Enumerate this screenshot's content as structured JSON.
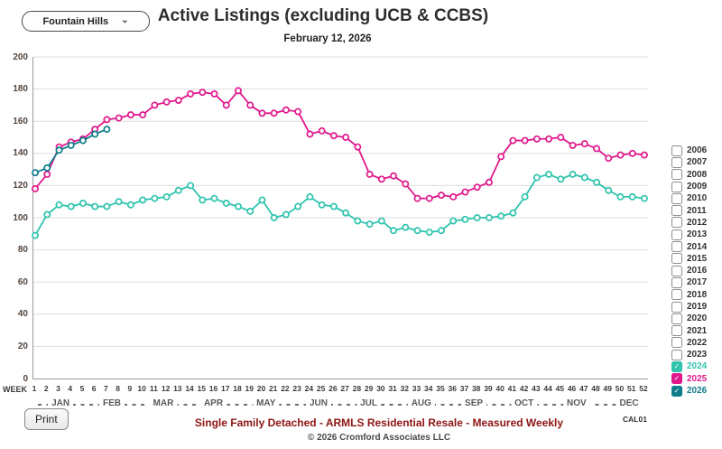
{
  "controls": {
    "area_selector": "Fountain Hills",
    "print_label": "Print",
    "code": "CAL01"
  },
  "header": {
    "title": "Active Listings (excluding UCB & CCBS)",
    "subtitle": "February 12, 2026"
  },
  "footer": {
    "line1": "Single Family Detached - ARMLS Residential Resale - Measured Weekly",
    "line2": "© 2026 Cromford Associates LLC"
  },
  "axis": {
    "week_label": "WEEK",
    "y_ticks": [
      200,
      180,
      160,
      140,
      120,
      100,
      80,
      60,
      40,
      20,
      0
    ],
    "weeks": [
      1,
      2,
      3,
      4,
      5,
      6,
      7,
      8,
      9,
      10,
      11,
      12,
      13,
      14,
      15,
      16,
      17,
      18,
      19,
      20,
      21,
      22,
      23,
      24,
      25,
      26,
      27,
      28,
      29,
      30,
      31,
      32,
      33,
      34,
      35,
      36,
      37,
      38,
      39,
      40,
      41,
      42,
      43,
      44,
      45,
      46,
      47,
      48,
      49,
      50,
      51,
      52
    ],
    "months": [
      {
        "label": "JAN",
        "center_week": 3.2
      },
      {
        "label": "FEB",
        "center_week": 7.5
      },
      {
        "label": "MAR",
        "center_week": 11.8
      },
      {
        "label": "APR",
        "center_week": 16.0
      },
      {
        "label": "MAY",
        "center_week": 20.4
      },
      {
        "label": "JUN",
        "center_week": 24.8
      },
      {
        "label": "JUL",
        "center_week": 29.0
      },
      {
        "label": "AUG",
        "center_week": 33.4
      },
      {
        "label": "SEP",
        "center_week": 37.8
      },
      {
        "label": "OCT",
        "center_week": 42.0
      },
      {
        "label": "NOV",
        "center_week": 46.4
      },
      {
        "label": "DEC",
        "center_week": 50.8
      }
    ]
  },
  "legend": {
    "years": [
      {
        "label": "2006",
        "checked": false
      },
      {
        "label": "2007",
        "checked": false
      },
      {
        "label": "2008",
        "checked": false
      },
      {
        "label": "2009",
        "checked": false
      },
      {
        "label": "2010",
        "checked": false
      },
      {
        "label": "2011",
        "checked": false
      },
      {
        "label": "2012",
        "checked": false
      },
      {
        "label": "2013",
        "checked": false
      },
      {
        "label": "2014",
        "checked": false
      },
      {
        "label": "2015",
        "checked": false
      },
      {
        "label": "2016",
        "checked": false
      },
      {
        "label": "2017",
        "checked": false
      },
      {
        "label": "2018",
        "checked": false
      },
      {
        "label": "2019",
        "checked": false
      },
      {
        "label": "2020",
        "checked": false
      },
      {
        "label": "2021",
        "checked": false
      },
      {
        "label": "2022",
        "checked": false
      },
      {
        "label": "2023",
        "checked": false
      },
      {
        "label": "2024",
        "checked": true,
        "color": "#2ec4ae"
      },
      {
        "label": "2025",
        "checked": true,
        "color": "#e0188c"
      },
      {
        "label": "2026",
        "checked": true,
        "color": "#0f7e8c"
      }
    ]
  },
  "chart_data": {
    "type": "line",
    "title": "Active Listings (excluding UCB & CCBS)",
    "subtitle": "February 12, 2026",
    "xlabel": "WEEK",
    "ylabel": "",
    "ylim": [
      0,
      200
    ],
    "xlim": [
      1,
      52
    ],
    "grid": true,
    "legend_position": "right",
    "marker": "open-circle",
    "x": [
      1,
      2,
      3,
      4,
      5,
      6,
      7,
      8,
      9,
      10,
      11,
      12,
      13,
      14,
      15,
      16,
      17,
      18,
      19,
      20,
      21,
      22,
      23,
      24,
      25,
      26,
      27,
      28,
      29,
      30,
      31,
      32,
      33,
      34,
      35,
      36,
      37,
      38,
      39,
      40,
      41,
      42,
      43,
      44,
      45,
      46,
      47,
      48,
      49,
      50,
      51,
      52
    ],
    "series": [
      {
        "name": "2024",
        "color": "#2ec4ae",
        "values": [
          89,
          102,
          108,
          107,
          109,
          107,
          107,
          110,
          108,
          111,
          112,
          113,
          117,
          120,
          111,
          112,
          109,
          107,
          104,
          111,
          100,
          102,
          107,
          113,
          108,
          107,
          103,
          98,
          96,
          98,
          92,
          94,
          92,
          91,
          92,
          98,
          99,
          100,
          100,
          101,
          103,
          113,
          125,
          127,
          124,
          127,
          125,
          122,
          117,
          113,
          113,
          112
        ]
      },
      {
        "name": "2025",
        "color": "#e0188c",
        "values": [
          118,
          127,
          144,
          147,
          149,
          155,
          161,
          162,
          164,
          164,
          170,
          172,
          173,
          177,
          178,
          177,
          170,
          179,
          170,
          165,
          165,
          167,
          166,
          152,
          154,
          151,
          150,
          144,
          127,
          124,
          126,
          121,
          112,
          112,
          114,
          113,
          116,
          119,
          122,
          138,
          148,
          148,
          149,
          149,
          150,
          145,
          146,
          143,
          137,
          139,
          140,
          139
        ]
      },
      {
        "name": "2026",
        "color": "#0f7e8c",
        "values": [
          128,
          131,
          142,
          145,
          148,
          152,
          155
        ]
      }
    ]
  }
}
